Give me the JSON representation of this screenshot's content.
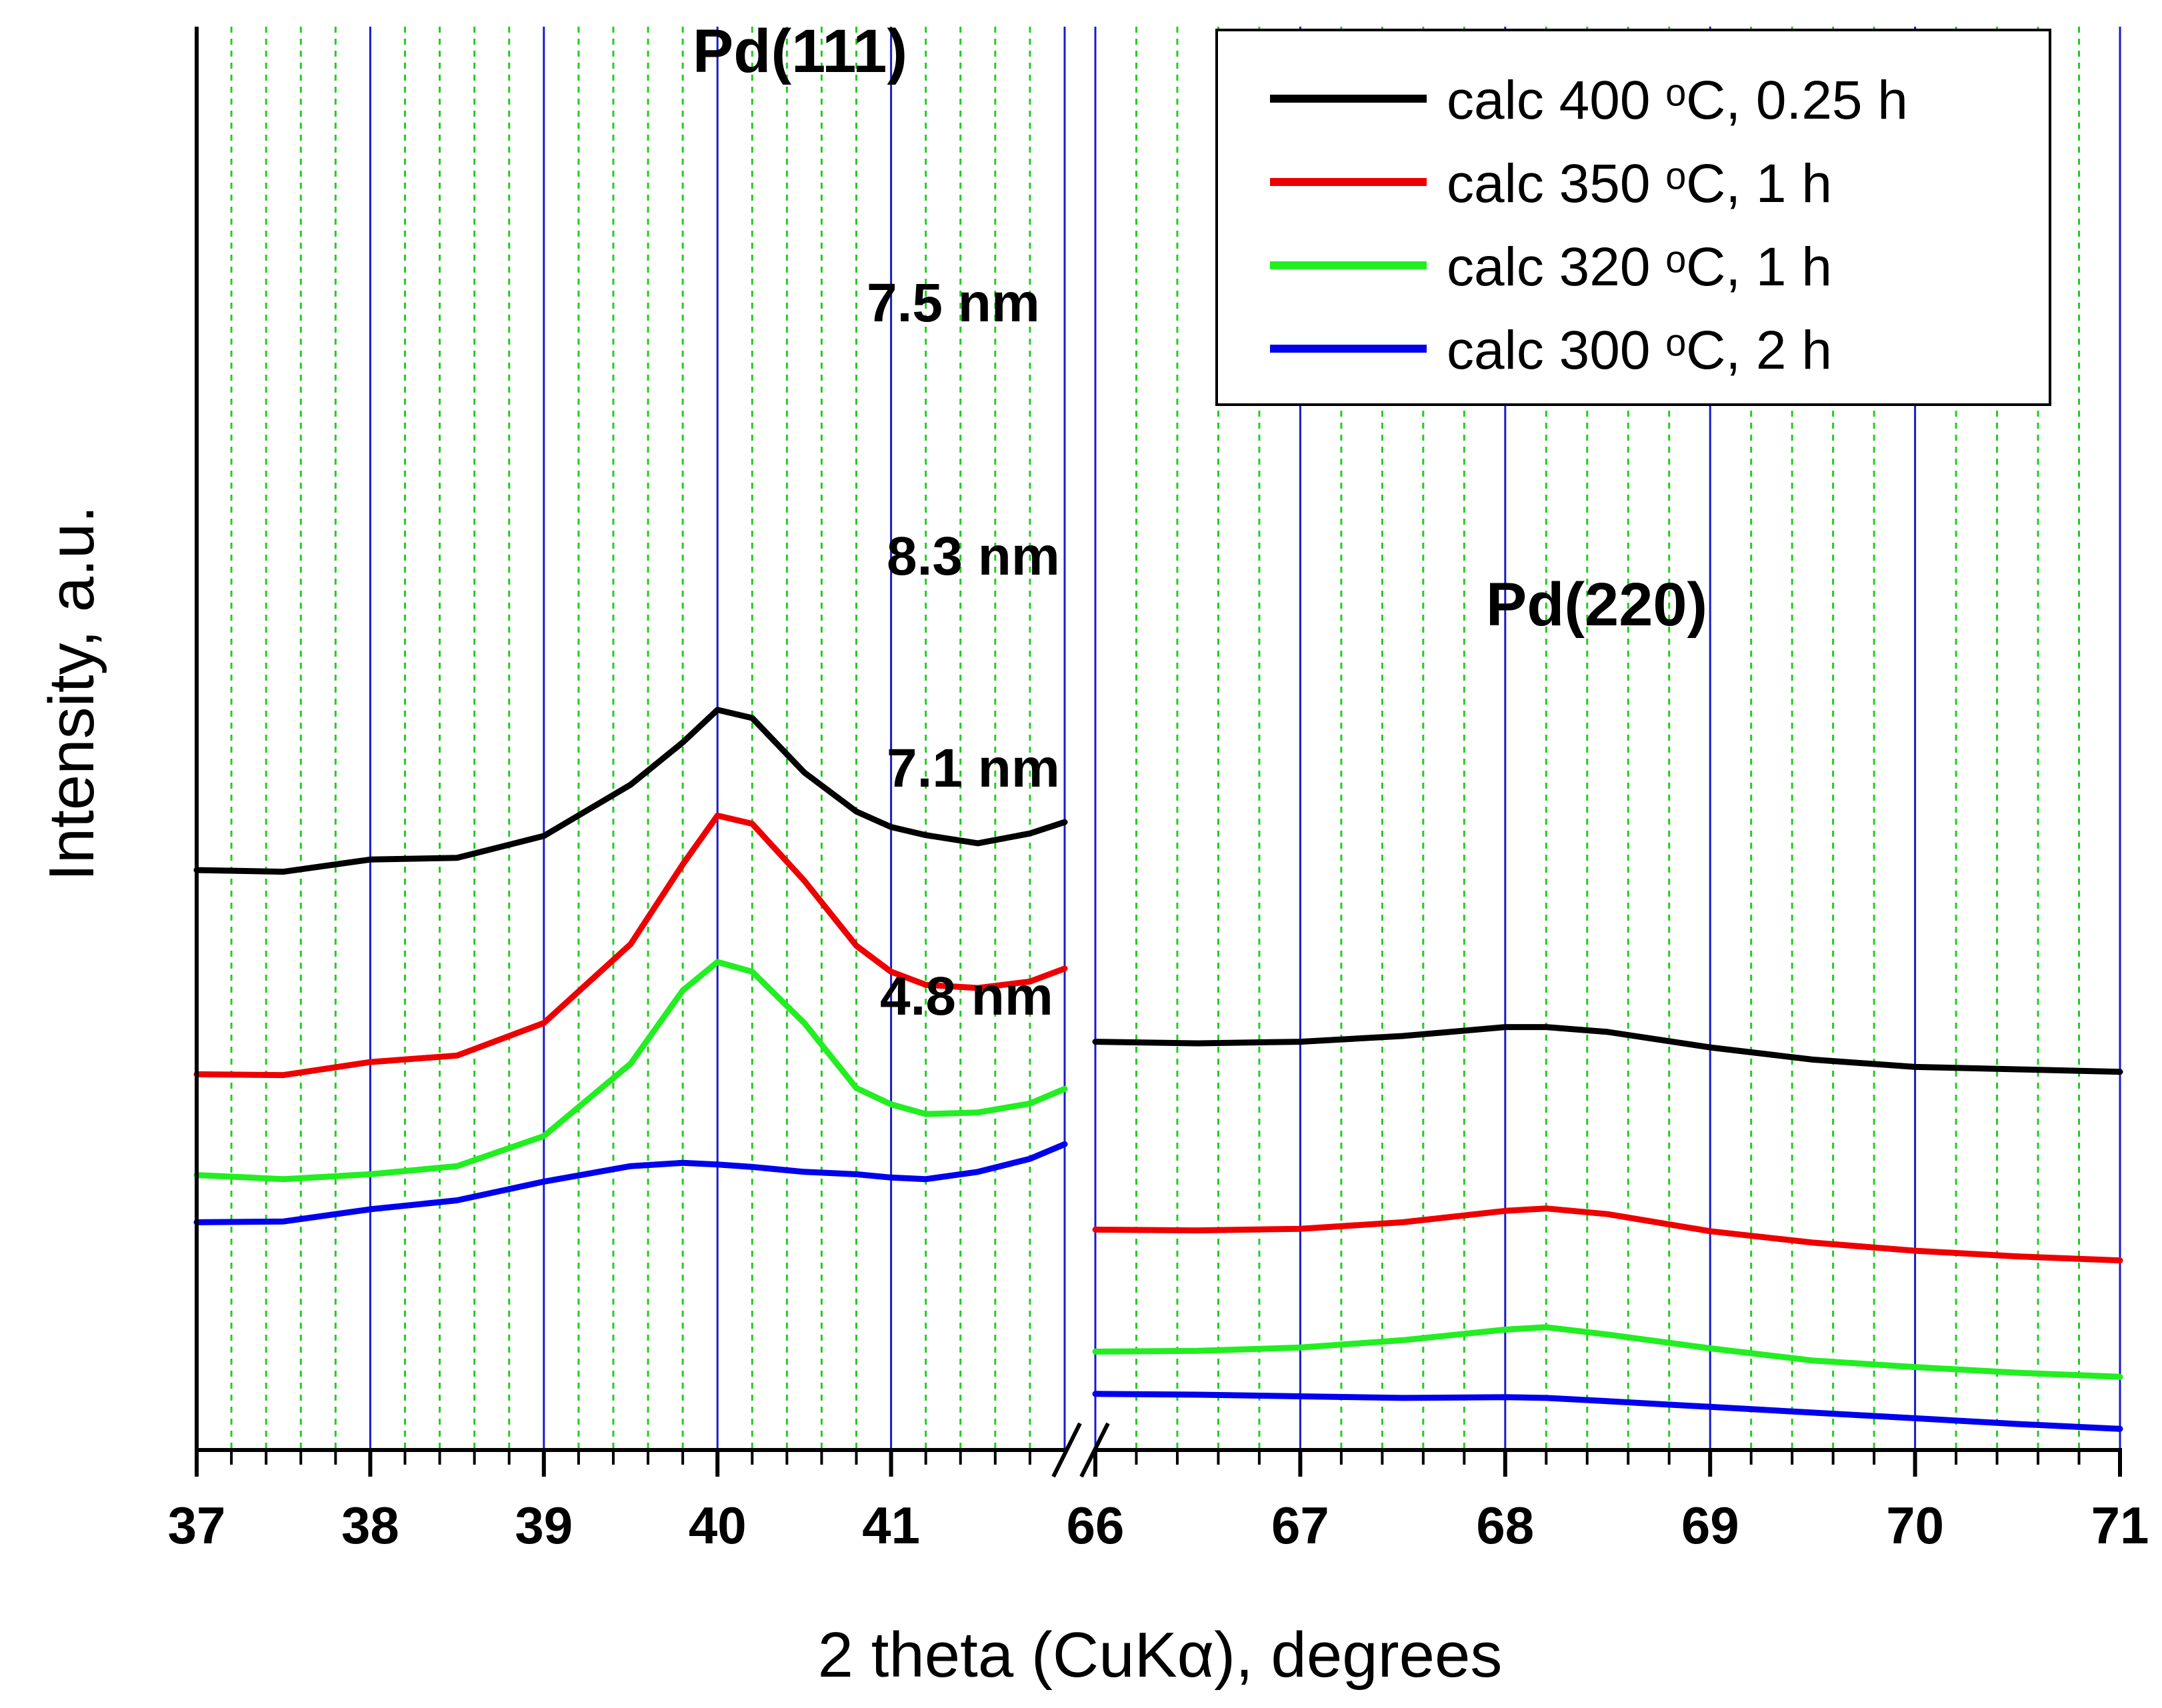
{
  "chart_data": {
    "type": "line",
    "xlabel": "2 theta (CuKα), degrees",
    "ylabel": "Intensity, a.u.",
    "x_segments": [
      {
        "name": "Pd(111) region",
        "xlim": [
          37,
          42
        ],
        "ticks": [
          "37",
          "38",
          "39",
          "40",
          "41"
        ]
      },
      {
        "name": "Pd(220) region",
        "xlim": [
          66,
          71
        ],
        "ticks": [
          "66",
          "67",
          "68",
          "69",
          "70",
          "71"
        ]
      }
    ],
    "axis_break": true,
    "grid": {
      "major": true,
      "minor": true,
      "major_color": "#1a1acc",
      "minor_color": "#22cc22"
    },
    "ylim": [
      0,
      100
    ],
    "peak_labels": [
      "Pd(111)",
      "Pd(220)"
    ],
    "legend": {
      "location": "top-right",
      "entries": [
        {
          "label": "calc 400 ᵒC, 0.25 h",
          "color": "#000000"
        },
        {
          "label": "calc 350 ᵒC, 1 h",
          "color": "#ee0000"
        },
        {
          "label": "calc 320 ᵒC, 1 h",
          "color": "#22ee22"
        },
        {
          "label": "calc 300 ᵒC, 2 h",
          "color": "#0000ee"
        }
      ]
    },
    "series": [
      {
        "name": "calc 400 ᵒC, 0.25 h",
        "color": "#000000",
        "crystallite_size": "7.5 nm",
        "segment1": {
          "x": [
            37.0,
            37.5,
            38.0,
            38.5,
            39.0,
            39.5,
            39.8,
            40.0,
            40.2,
            40.5,
            40.8,
            41.0,
            41.2,
            41.5,
            41.8,
            42.0
          ],
          "y": [
            71.3,
            71.1,
            72.6,
            72.8,
            75.5,
            81.8,
            87.0,
            91.0,
            90.0,
            83.3,
            78.5,
            76.6,
            75.6,
            74.6,
            75.8,
            77.2
          ]
        },
        "segment2": {
          "x": [
            66.0,
            66.5,
            67.0,
            67.5,
            68.0,
            68.2,
            68.5,
            69.0,
            69.5,
            70.0,
            70.5,
            71.0
          ],
          "y": [
            50.2,
            50.0,
            50.2,
            50.9,
            52.0,
            52.0,
            51.4,
            49.5,
            48.0,
            47.1,
            46.8,
            46.5
          ]
        }
      },
      {
        "name": "calc 350 ᵒC, 1 h",
        "color": "#ee0000",
        "crystallite_size": "8.3 nm",
        "segment1": {
          "x": [
            37.0,
            37.5,
            38.0,
            38.5,
            39.0,
            39.5,
            39.8,
            40.0,
            40.2,
            40.5,
            40.8,
            41.0,
            41.2,
            41.5,
            41.8,
            42.0
          ],
          "y": [
            46.2,
            46.1,
            47.7,
            48.5,
            52.5,
            62.2,
            72.0,
            78.0,
            77.0,
            70.0,
            62.0,
            58.8,
            57.2,
            56.8,
            57.6,
            59.2
          ]
        },
        "segment2": {
          "x": [
            66.0,
            66.5,
            67.0,
            67.5,
            68.0,
            68.2,
            68.5,
            69.0,
            69.5,
            70.0,
            70.5,
            71.0
          ],
          "y": [
            27.1,
            27.0,
            27.2,
            28.0,
            29.4,
            29.7,
            29.0,
            26.9,
            25.5,
            24.5,
            23.8,
            23.3
          ]
        }
      },
      {
        "name": "calc 320 ᵒC, 1 h",
        "color": "#22ee22",
        "crystallite_size": "7.1 nm",
        "segment1": {
          "x": [
            37.0,
            37.5,
            38.0,
            38.5,
            39.0,
            39.5,
            39.8,
            40.0,
            40.2,
            40.5,
            40.8,
            41.0,
            41.2,
            41.5,
            41.8,
            42.0
          ],
          "y": [
            33.8,
            33.3,
            33.9,
            34.9,
            38.6,
            47.5,
            56.5,
            60.0,
            58.8,
            52.5,
            44.5,
            42.5,
            41.3,
            41.5,
            42.6,
            44.4
          ]
        },
        "segment2": {
          "x": [
            66.0,
            66.5,
            67.0,
            67.5,
            68.0,
            68.2,
            68.5,
            69.0,
            69.5,
            70.0,
            70.5,
            71.0
          ],
          "y": [
            12.1,
            12.2,
            12.6,
            13.5,
            14.8,
            15.1,
            14.2,
            12.5,
            11.0,
            10.2,
            9.5,
            9.0
          ]
        }
      },
      {
        "name": "calc 300 ᵒC, 2 h",
        "color": "#0000ee",
        "crystallite_size": "4.8 nm",
        "segment1": {
          "x": [
            37.0,
            37.5,
            38.0,
            38.5,
            39.0,
            39.5,
            39.8,
            40.0,
            40.2,
            40.5,
            40.8,
            41.0,
            41.2,
            41.5,
            41.8,
            42.0
          ],
          "y": [
            28.0,
            28.1,
            29.6,
            30.7,
            33.0,
            34.9,
            35.3,
            35.1,
            34.8,
            34.2,
            33.9,
            33.5,
            33.3,
            34.2,
            35.8,
            37.6
          ]
        },
        "segment2": {
          "x": [
            66.0,
            66.5,
            67.0,
            67.5,
            68.0,
            68.2,
            68.5,
            69.0,
            69.5,
            70.0,
            70.5,
            71.0
          ],
          "y": [
            6.9,
            6.8,
            6.6,
            6.4,
            6.5,
            6.4,
            6.0,
            5.3,
            4.6,
            3.9,
            3.2,
            2.6
          ]
        }
      }
    ]
  }
}
